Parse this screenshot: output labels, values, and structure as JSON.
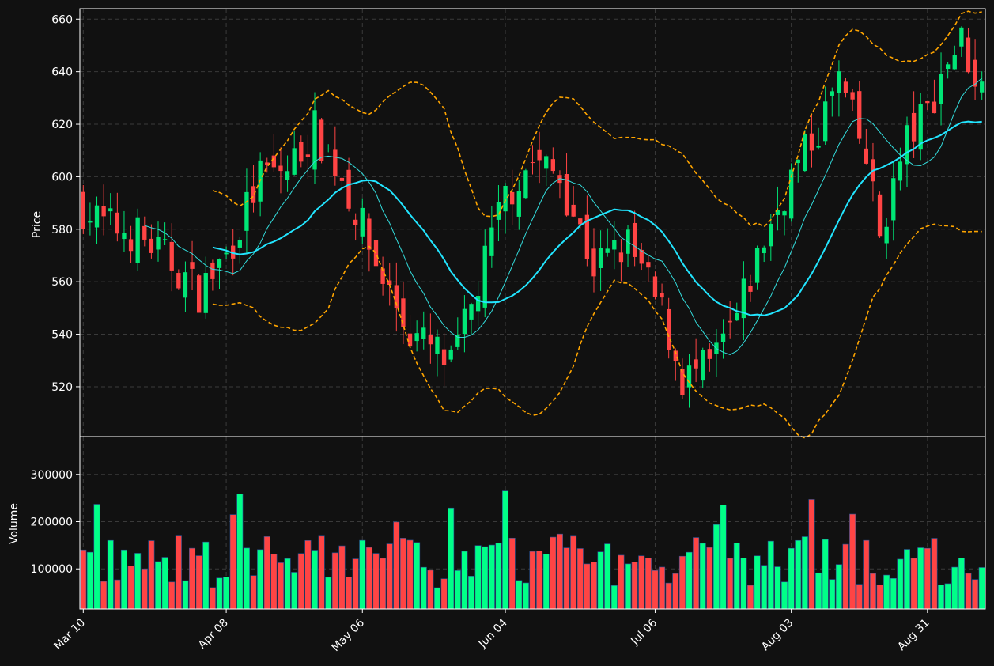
{
  "theme": {
    "background": "#111111",
    "grid": "#3a3a3a",
    "up": "#00e676",
    "down": "#ff4444",
    "bar_up": "#00ff88",
    "bar_down": "#ff4444",
    "ma_fast": "#33dddd",
    "ma_slow": "#22e5ff",
    "band": "#ffa500",
    "axis": "#ffffff"
  },
  "chart_data": [
    {
      "type": "candlestick",
      "ylabel": "Price",
      "ylim": [
        501,
        664
      ],
      "yticks": [
        520,
        540,
        560,
        580,
        600,
        620,
        640,
        660
      ],
      "xticks": [
        {
          "label": "Mar 10",
          "index": 0
        },
        {
          "label": "Apr 08",
          "index": 21
        },
        {
          "label": "May 06",
          "index": 41
        },
        {
          "label": "Jun 04",
          "index": 62
        },
        {
          "label": "Jul 06",
          "index": 84
        },
        {
          "label": "Aug 03",
          "index": 104
        },
        {
          "label": "Aug 31",
          "index": 124
        }
      ],
      "grid": true,
      "overlays": [
        {
          "name": "ma-fast",
          "style": "thin solid",
          "color": "#33dddd"
        },
        {
          "name": "ma-slow",
          "style": "solid",
          "color": "#22e5ff"
        },
        {
          "name": "band-upper",
          "style": "dashed",
          "color": "#ffa500"
        },
        {
          "name": "band-lower",
          "style": "dashed",
          "color": "#ffa500"
        }
      ]
    },
    {
      "type": "bar",
      "ylabel": "Volume",
      "ylim": [
        15000,
        380000
      ],
      "yticks": [
        100000,
        200000,
        300000
      ],
      "grid": true
    }
  ]
}
